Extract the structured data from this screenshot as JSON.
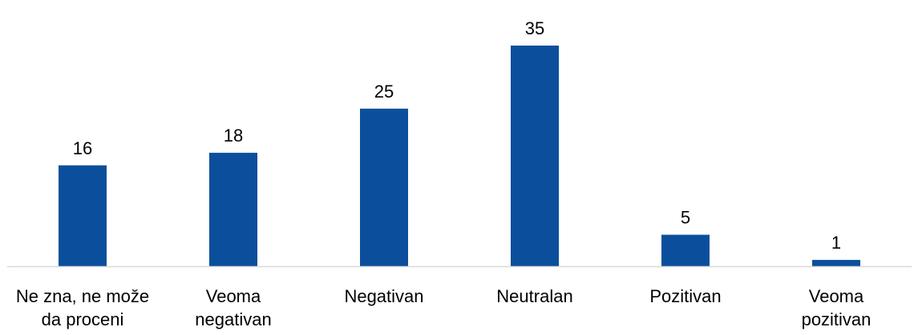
{
  "chart_data": {
    "type": "bar",
    "categories": [
      [
        "Ne zna, ne može",
        "da proceni"
      ],
      [
        "Veoma",
        "negativan"
      ],
      [
        "Negativan"
      ],
      [
        "Neutralan"
      ],
      [
        "Pozitivan"
      ],
      [
        "Veoma",
        "pozitivan"
      ]
    ],
    "values": [
      16,
      18,
      25,
      35,
      5,
      1
    ],
    "value_labels": [
      "16",
      "18",
      "25",
      "35",
      "5",
      "1"
    ],
    "bar_color": "#0b4f9c",
    "axis_color": "#d9d9d9",
    "grid": false,
    "legend": "none",
    "ylim": [
      0,
      35
    ]
  }
}
